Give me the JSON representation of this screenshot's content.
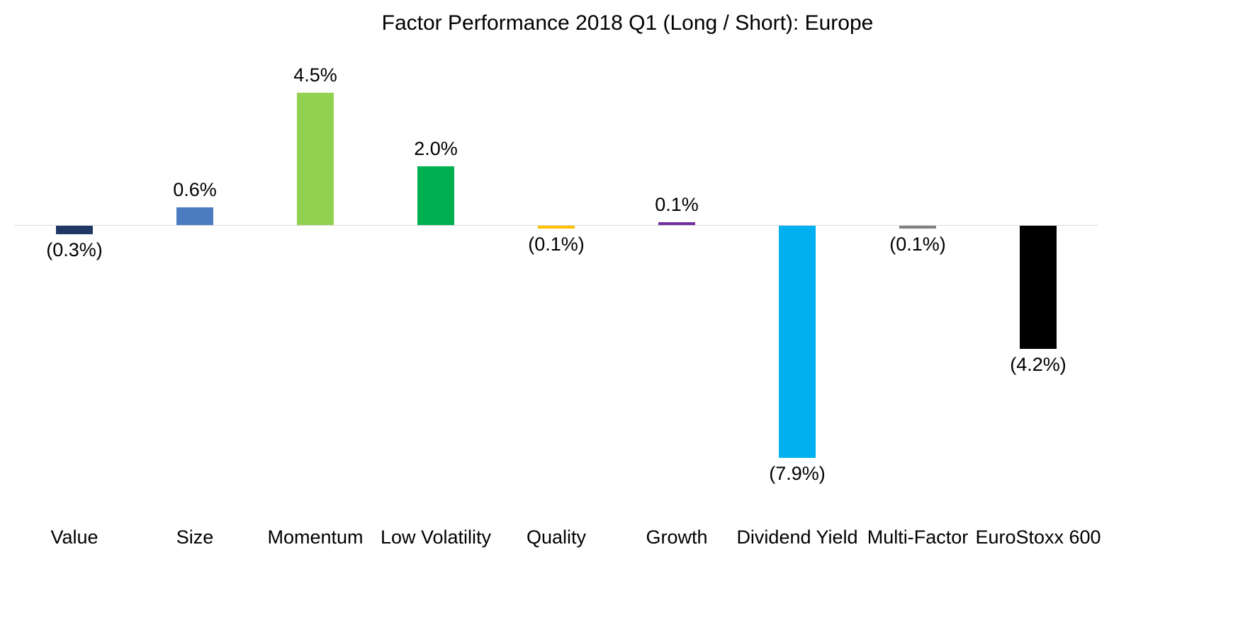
{
  "chart_data": {
    "type": "bar",
    "title": "Factor Performance 2018 Q1 (Long / Short): Europe",
    "categories": [
      "Value",
      "Size",
      "Momentum",
      "Low Volatility",
      "Quality",
      "Growth",
      "Dividend Yield",
      "Multi-Factor",
      "EuroStoxx 600"
    ],
    "values": [
      -0.3,
      0.6,
      4.5,
      2.0,
      -0.1,
      0.1,
      -7.9,
      -0.1,
      -4.2
    ],
    "value_labels": [
      "(0.3%)",
      "0.6%",
      "4.5%",
      "2.0%",
      "(0.1%)",
      "0.1%",
      "(7.9%)",
      "(0.1%)",
      "(4.2%)"
    ],
    "colors": [
      "#1F3864",
      "#4C7BC0",
      "#92D050",
      "#00B050",
      "#FFC000",
      "#7030A0",
      "#00B0F0",
      "#808080",
      "#000000"
    ],
    "xlabel": "",
    "ylabel": "",
    "ylim": [
      -9,
      5.5
    ],
    "grid": false,
    "legend": false,
    "axis_line_color": "#D9D9D9",
    "negative_label_format": "parentheses"
  }
}
